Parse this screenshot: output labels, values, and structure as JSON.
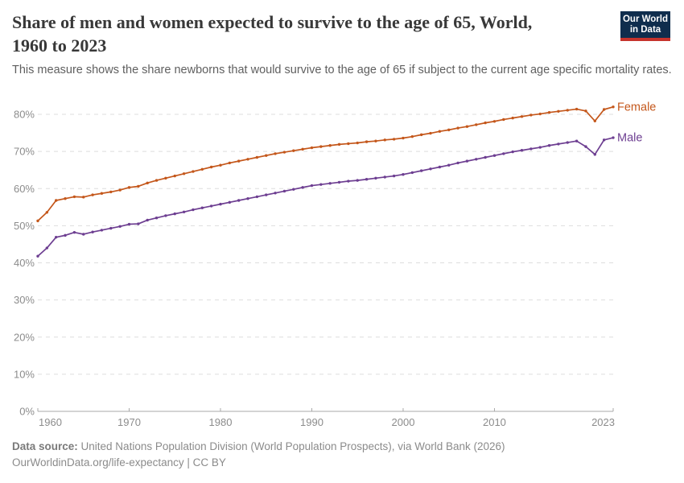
{
  "header": {
    "title_line1": "Share of men and women expected to survive to the age of 65, World,",
    "title_line2": "1960 to 2023",
    "subtitle": "This measure shows the share newborns that would survive to the age of 65 if subject to the current age specific mortality rates."
  },
  "logo": {
    "line1": "Our World",
    "line2": "in Data",
    "bg_color": "#0F2D4D",
    "accent_color": "#C6332C"
  },
  "chart_data": {
    "type": "line",
    "title": "Share of men and women expected to survive to the age of 65, World, 1960 to 2023",
    "xlabel": "",
    "ylabel": "",
    "x_start": 1960,
    "x_end": 2023,
    "ylim": [
      0,
      85
    ],
    "grid": "horizontal dashed gridlines at 10% steps",
    "legend_position": "labels at right end of each line",
    "x_ticks": [
      "1960",
      "1970",
      "1980",
      "1990",
      "2000",
      "2010",
      "2023"
    ],
    "x_tick_years": [
      1960,
      1970,
      1980,
      1990,
      2000,
      2010,
      2023
    ],
    "y_ticks": [
      "0%",
      "10%",
      "20%",
      "30%",
      "40%",
      "50%",
      "60%",
      "70%",
      "80%"
    ],
    "years": [
      1960,
      1961,
      1962,
      1963,
      1964,
      1965,
      1966,
      1967,
      1968,
      1969,
      1970,
      1971,
      1972,
      1973,
      1974,
      1975,
      1976,
      1977,
      1978,
      1979,
      1980,
      1981,
      1982,
      1983,
      1984,
      1985,
      1986,
      1987,
      1988,
      1989,
      1990,
      1991,
      1992,
      1993,
      1994,
      1995,
      1996,
      1997,
      1998,
      1999,
      2000,
      2001,
      2002,
      2003,
      2004,
      2005,
      2006,
      2007,
      2008,
      2009,
      2010,
      2011,
      2012,
      2013,
      2014,
      2015,
      2016,
      2017,
      2018,
      2019,
      2020,
      2021,
      2022,
      2023
    ],
    "series": [
      {
        "name": "Female",
        "color": "#C4571B",
        "values": [
          51.3,
          53.6,
          56.8,
          57.3,
          57.8,
          57.7,
          58.3,
          58.7,
          59.1,
          59.6,
          60.3,
          60.6,
          61.5,
          62.2,
          62.8,
          63.4,
          64.0,
          64.6,
          65.2,
          65.8,
          66.3,
          66.9,
          67.4,
          67.9,
          68.4,
          68.9,
          69.4,
          69.8,
          70.2,
          70.6,
          71.0,
          71.3,
          71.6,
          71.9,
          72.1,
          72.3,
          72.6,
          72.8,
          73.1,
          73.3,
          73.6,
          74.0,
          74.5,
          74.9,
          75.4,
          75.8,
          76.3,
          76.7,
          77.2,
          77.7,
          78.1,
          78.6,
          79.0,
          79.4,
          79.8,
          80.1,
          80.5,
          80.8,
          81.1,
          81.4,
          80.9,
          78.2,
          81.3,
          82.0
        ]
      },
      {
        "name": "Male",
        "color": "#6D3E91",
        "values": [
          41.8,
          44.0,
          46.9,
          47.4,
          48.2,
          47.7,
          48.3,
          48.8,
          49.3,
          49.8,
          50.4,
          50.5,
          51.5,
          52.1,
          52.7,
          53.2,
          53.7,
          54.3,
          54.8,
          55.3,
          55.8,
          56.3,
          56.8,
          57.3,
          57.8,
          58.3,
          58.8,
          59.3,
          59.8,
          60.3,
          60.8,
          61.1,
          61.4,
          61.7,
          62.0,
          62.2,
          62.5,
          62.8,
          63.1,
          63.4,
          63.8,
          64.3,
          64.8,
          65.3,
          65.8,
          66.3,
          66.9,
          67.4,
          67.9,
          68.4,
          68.9,
          69.4,
          69.9,
          70.3,
          70.7,
          71.1,
          71.6,
          72.0,
          72.4,
          72.8,
          71.3,
          69.2,
          73.1,
          73.7
        ]
      }
    ]
  },
  "footer": {
    "source_label": "Data source:",
    "source_text": " United Nations Population Division (World Population Prospects), via World Bank (2026)",
    "license_line": "OurWorldinData.org/life-expectancy | CC BY"
  }
}
